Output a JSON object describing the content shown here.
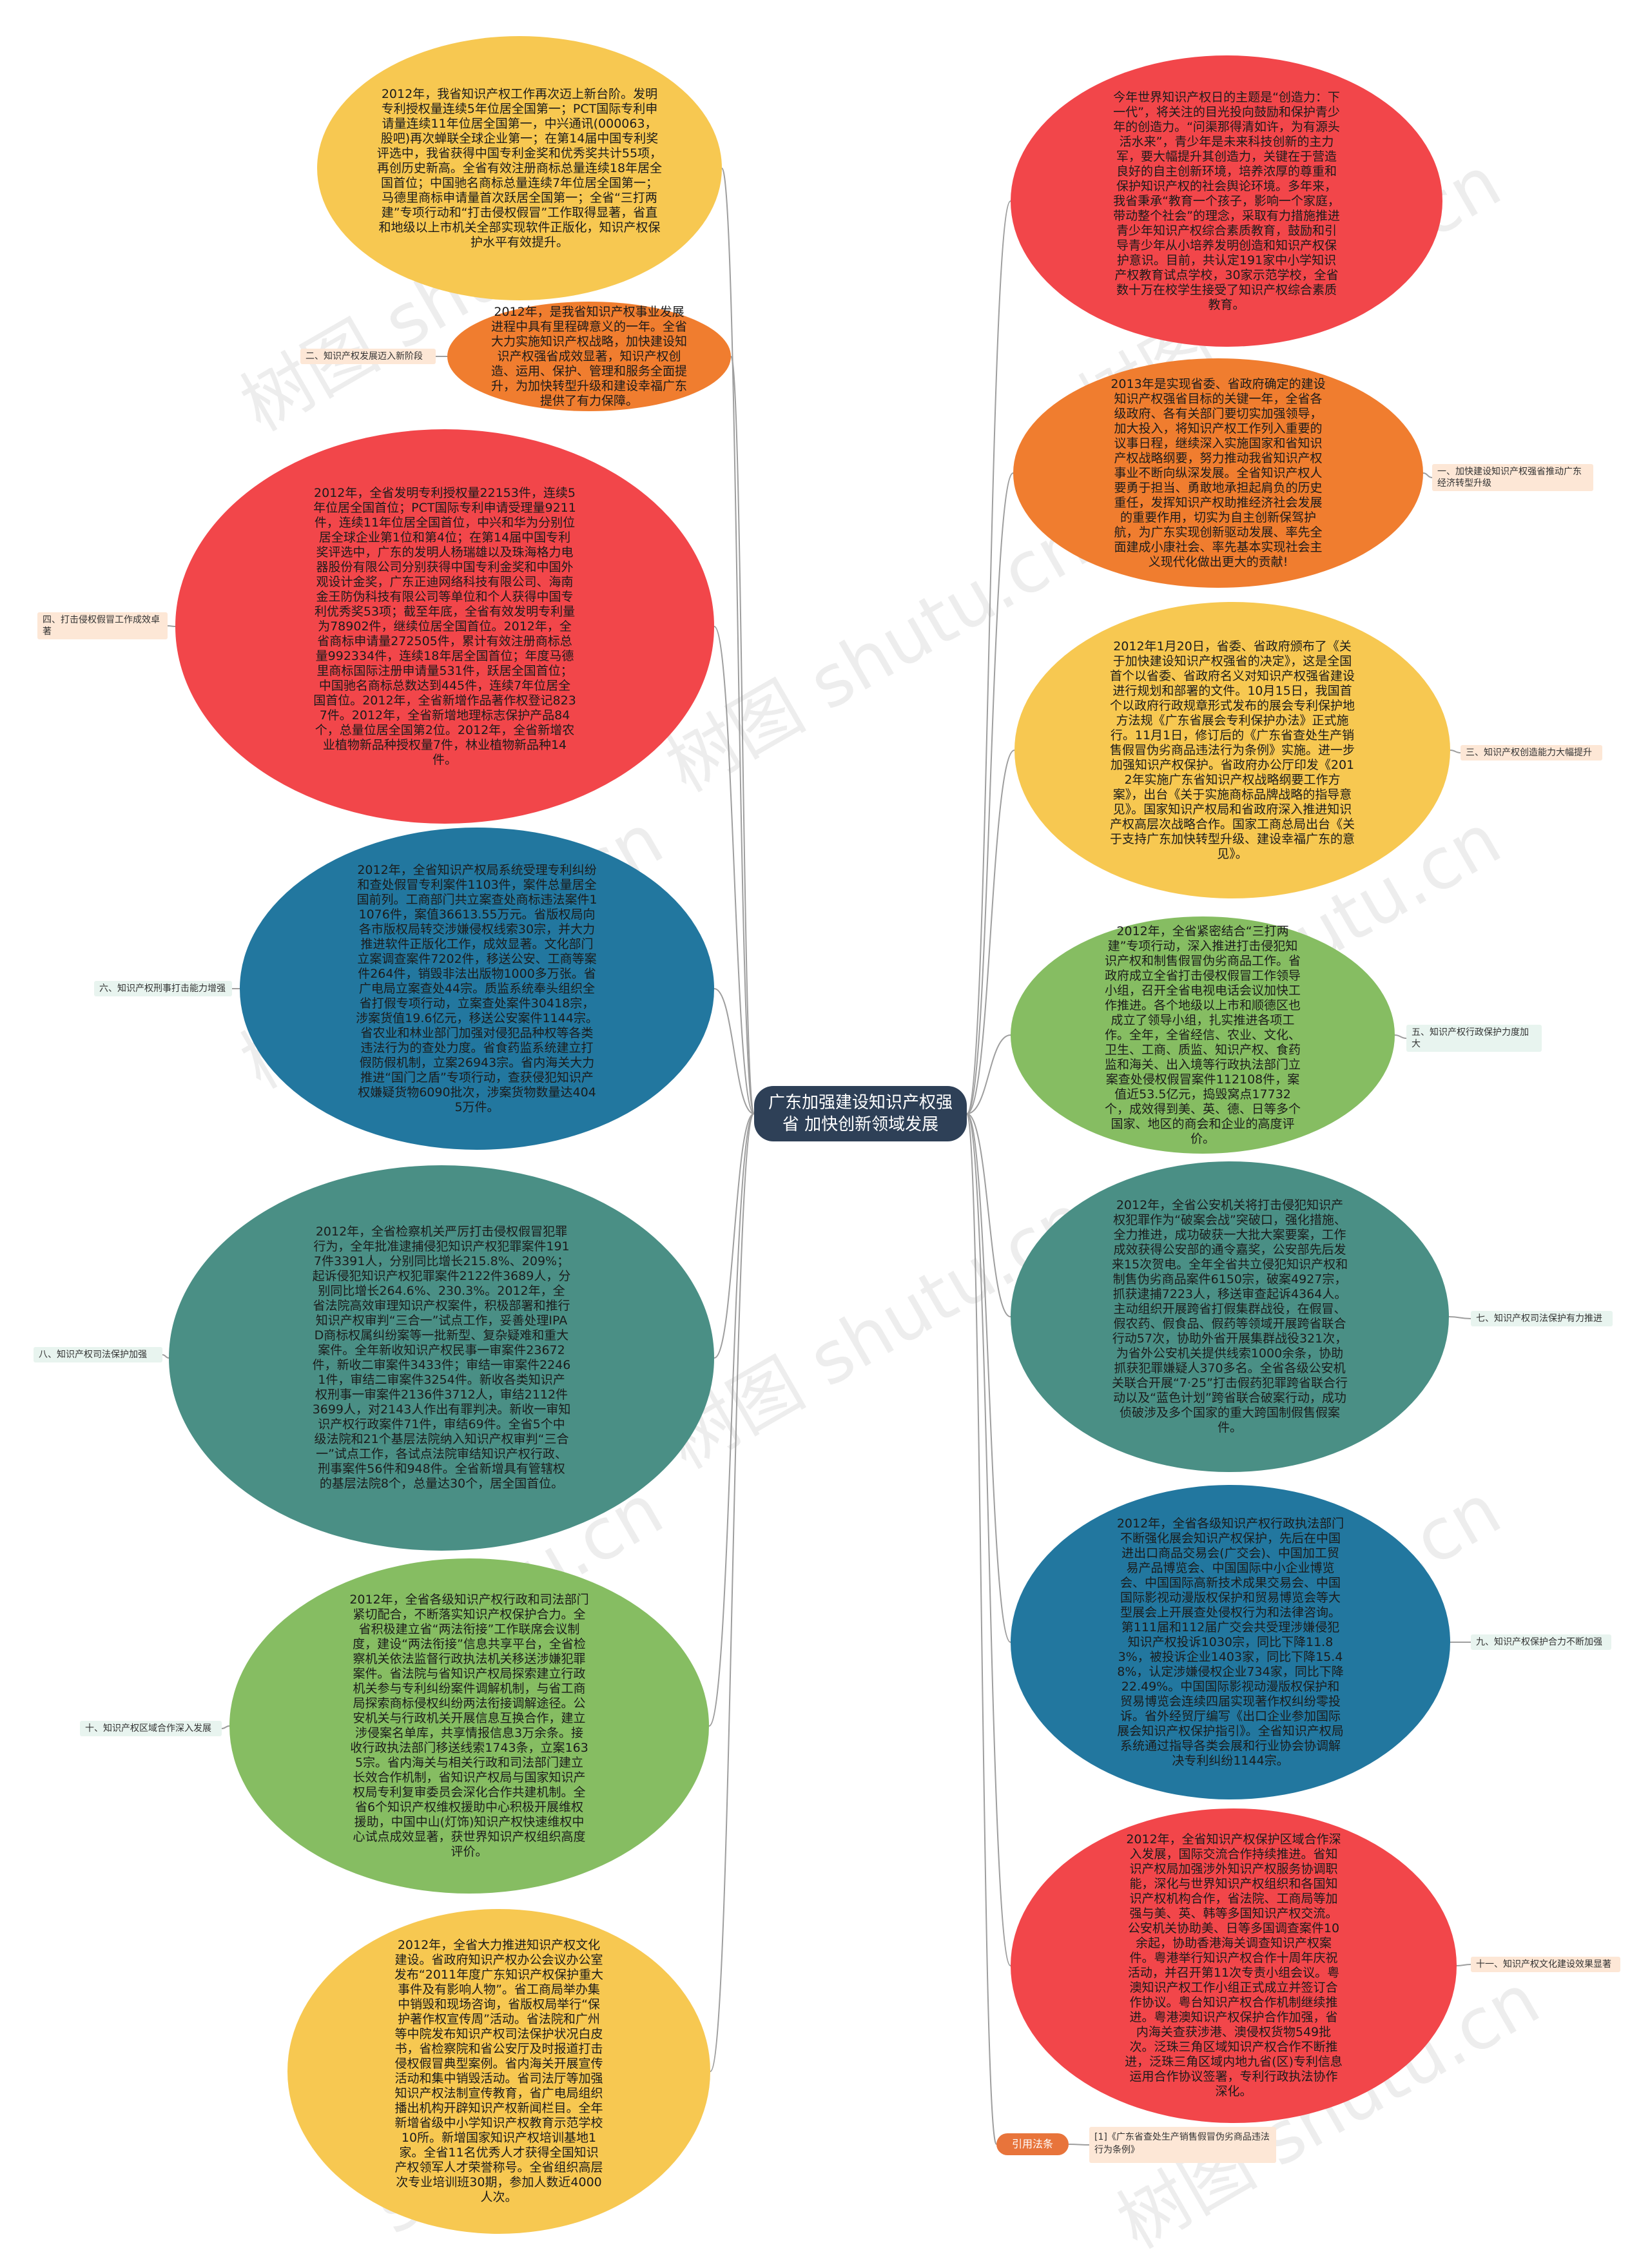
{
  "center": {
    "title": "广东加强建设知识产权强省 加快创新领域发展"
  },
  "colors": {
    "yellow": "#f7c851",
    "orange": "#f07d2f",
    "red": "#f2464a",
    "blue": "#22779f",
    "teal": "#4a8f85",
    "green": "#86bd62",
    "label_bg": "#e8f4ef",
    "label_bg_alt": "#fde7d6",
    "line": "#9e9e9e"
  },
  "nodes": [
    {
      "label": "",
      "text": "2012年，我省知识产权工作再次迈上新台阶。发明专利授权量连续5年位居全国第一；PCT国际专利申请量连续11年位居全国第一，中兴通讯(000063，股吧)再次蝉联全球企业第一；在第14届中国专利奖评选中，我省获得中国专利金奖和优秀奖共计55项，再创历史新高。全省有效注册商标总量连续18年居全国首位；中国驰名商标总量连续7年位居全国第一；马德里商标申请量首次跃居全国第一；全省“三打两建”专项行动和“打击侵权假冒”工作取得显著，省直和地级以上市机关全部实现软件正版化，知识产权保护水平有效提升。"
    },
    {
      "label": "二、知识产权发展迈入新阶段",
      "text": "2012年，是我省知识产权事业发展进程中具有里程碑意义的一年。全省大力实施知识产权战略，加快建设知识产权强省成效显著，知识产权创造、运用、保护、管理和服务全面提升，为加快转型升级和建设幸福广东提供了有力保障。"
    },
    {
      "label": "四、打击侵权假冒工作成效卓著",
      "text": "2012年，全省发明专利授权量22153件，连续5年位居全国首位；PCT国际专利申请受理量9211件，连续11年位居全国首位，中兴和华为分别位居全球企业第1位和第4位；在第14届中国专利奖评选中，广东的发明人杨瑞雄以及珠海格力电器股份有限公司分别获得中国专利金奖和中国外观设计金奖，广东正迪网络科技有限公司、海南金王防伪科技有限公司等单位和个人获得中国专利优秀奖53项；截至年底，全省有效发明专利量为78902件，继续位居全国首位。2012年，全省商标申请量272505件，累计有效注册商标总量992334件，连续18年居全国首位；年度马德里商标国际注册申请量531件，跃居全国首位；中国驰名商标总数达到445件，连续7年位居全国首位。2012年，全省新增作品著作权登记8237件。2012年，全省新增地理标志保护产品84个，总量位居全国第2位。2012年，全省新增农业植物新品种授权量7件，林业植物新品种14件。"
    },
    {
      "label": "六、知识产权刑事打击能力增强",
      "text": "2012年，全省知识产权局系统受理专利纠纷和查处假冒专利案件1103件，案件总量居全国前列。工商部门共立案查处商标违法案件11076件，案值36613.55万元。省版权局向各市版权局转交涉嫌侵权线索30宗，并大力推进软件正版化工作，成效显著。文化部门立案调查案件7202件，移送公安、工商等案件264件，销毁非法出版物1000多万张。省广电局立案查处44宗。质监系统奉头组织全省打假专项行动，立案查处案件30418宗，涉案货值19.6亿元，移送公安案件1144宗。省农业和林业部门加强对侵犯品种权等各类违法行为的查处力度。省食药监系统建立打假防假机制，立案26943宗。省内海关大力推进“国门之盾”专项行动，查获侵犯知识产权嫌疑货物6090批次，涉案货物数量达4045万件。"
    },
    {
      "label": "八、知识产权司法保护加强",
      "text": "2012年，全省检察机关严厉打击侵权假冒犯罪行为，全年批准逮捕侵犯知识产权犯罪案件1917件3391人，分别同比增长215.8%、209%；起诉侵犯知识产权犯罪案件2122件3689人，分别同比增长264.6%、230.3%。2012年，全省法院高效审理知识产权案件，积极部署和推行知识产权审判“三合一”试点工作，妥善处理IPAD商标权属纠纷案等一批新型、复杂疑难和重大案件。全年新收知识产权民事一审案件23672件，新收二审案件3433件；审结一审案件22461件，审结二审案件3254件。新收各类知识产权刑事一审案件2136件3712人，审结2112件3699人，对2143人作出有罪判决。新收一审知识产权行政案件71件，审结69件。全省5个中级法院和21个基层法院纳入知识产权审判“三合一”试点工作，各试点法院审结知识产权行政、刑事案件56件和948件。全省新增具有管辖权的基层法院8个，总量达30个，居全国首位。"
    },
    {
      "label": "十、知识产权区域合作深入发展",
      "text": "2012年，全省各级知识产权行政和司法部门紧切配合，不断落实知识产权保护合力。全省积极建立省“两法衔接”工作联席会议制度，建设“两法衔接”信息共享平台，全省检察机关依法监督行政执法机关移送涉嫌犯罪案件。省法院与省知识产权局探索建立行政机关参与专利纠纷案件调解机制，与省工商局探索商标侵权纠纷两法衔接调解途径。公安机关与行政机关开展信息互换合作，建立涉侵案名单库，共享情报信息3万余条。接收行政执法部门移送线索1743条，立案1635宗。省内海关与相关行政和司法部门建立长效合作机制，省知识产权局与国家知识产权局专利复审委员会深化合作共建机制。全省6个知识产权维权援助中心积极开展维权援助，中国中山(灯饰)知识产权快速维权中心试点成效显著，获世界知识产权组织高度评价。"
    },
    {
      "label": "",
      "text": "2012年，全省大力推进知识产权文化建设。省政府知识产权办公会议办公室发布“2011年度广东知识产权保护重大事件及有影响人物”。省工商局举办集中销毁和现场咨询，省版权局举行“保护著作权宣传周”活动。省法院和广州等中院发布知识产权司法保护状况白皮书，省检察院和省公安厅及时报道打击侵权假冒典型案例。省内海关开展宣传活动和集中销毁活动。省司法厅等加强知识产权法制宣传教育，省广电局组织播出机构开辟知识产权新闻栏目。全年新增省级中小学知识产权教育示范学校10所。新增国家知识产权培训基地1家。全省11名优秀人才获得全国知识产权领军人才荣誉称号。全省组织高层次专业培训班30期，参加人数近4000人次。"
    },
    {
      "label": "",
      "text": "今年世界知识产权日的主题是“创造力：下一代”，将关注的目光投向鼓励和保护青少年的创造力。“问渠那得清如许，为有源头活水来”，青少年是未来科技创新的主力军，要大幅提升其创造力，关键在于营造良好的自主创新环境，培养浓厚的尊重和保护知识产权的社会舆论环境。多年来，我省秉承“教育一个孩子，影响一个家庭，带动整个社会”的理念，采取有力措施推进青少年知识产权综合素质教育，鼓励和引导青少年从小培养发明创造和知识产权保护意识。目前，共认定191家中小学知识产权教育试点学校，30家示范学校，全省数十万在校学生接受了知识产权综合素质教育。"
    },
    {
      "label": "一、加快建设知识产权强省推动广东经济转型升级",
      "text": "2013年是实现省委、省政府确定的建设知识产权强省目标的关键一年，全省各级政府、各有关部门要切实加强领导，加大投入，将知识产权工作列入重要的议事日程，继续深入实施国家和省知识产权战略纲要，努力推动我省知识产权事业不断向纵深发展。全省知识产权人要勇于担当、勇敢地承担起肩负的历史重任，发挥知识产权助推经济社会发展的重要作用，切实为自主创新保驾护航，为广东实现创新驱动发展、率先全面建成小康社会、率先基本实现社会主义现代化做出更大的贡献!"
    },
    {
      "label": "三、知识产权创造能力大幅提升",
      "text": "2012年1月20日，省委、省政府颁布了《关于加快建设知识产权强省的决定》，这是全国首个以省委、省政府名义对知识产权强省建设进行规划和部署的文件。10月15日，我国首个以政府行政规章形式发布的展会专利保护地方法规《广东省展会专利保护办法》正式施行。11月1日，修订后的《广东省查处生产销售假冒伪劣商品违法行为条例》实施。进一步加强知识产权保护。省政府办公厅印发《2012年实施广东省知识产权战略纲要工作方案》，出台《关于实施商标品牌战略的指导意见》。国家知识产权局和省政府深入推进知识产权高层次战略合作。国家工商总局出台《关于支持广东加快转型升级、建设幸福广东的意见》。"
    },
    {
      "label": "五、知识产权行政保护力度加大",
      "text": "2012年，全省紧密结合“三打两建”专项行动，深入推进打击侵犯知识产权和制售假冒伪劣商品工作。省政府成立全省打击侵权假冒工作领导小组，召开全省电视电话会议加快工作推进。各个地级以上市和顺德区也成立了领导小组，扎实推进各项工作。全年，全省经信、农业、文化、卫生、工商、质监、知识产权、食药监和海关、出入境等行政执法部门立案查处侵权假冒案件112108件，案值近53.5亿元，捣毁窝点17732个，成效得到美、英、德、日等多个国家、地区的商会和企业的高度评价。"
    },
    {
      "label": "七、知识产权司法保护有力推进",
      "text": "2012年，全省公安机关将打击侵犯知识产权犯罪作为“破案会战”突破口，强化措施、全力推进，成功破获一大批大案要案，工作成效获得公安部的通令嘉奖，公安部先后发来15次贺电。全年全省共立侵犯知识产权和制售伪劣商品案件6150宗，破案4927宗，抓获逮捕7223人，移送审查起诉4364人。主动组织开展跨省打假集群战役，在假冒、假农药、假食品、假药等领域开展跨省联合行动57次，协助外省开展集群战役321次，为省外公安机关提供线索1000余条，协助抓获犯罪嫌疑人370多名。全省各级公安机关联合开展“7·25”打击假药犯罪跨省联合行动以及“蓝色计划”跨省联合破案行动，成功侦破涉及多个国家的重大跨国制假售假案件。"
    },
    {
      "label": "九、知识产权保护合力不断加强",
      "text": "2012年，全省各级知识产权行政执法部门不断强化展会知识产权保护，先后在中国进出口商品交易会(广交会)、中国加工贸易产品博览会、中国国际中小企业博览会、中国国际高新技术成果交易会、中国国际影视动漫版权保护和贸易博览会等大型展会上开展查处侵权行为和法律咨询。第111届和112届广交会共受理涉嫌侵犯知识产权投诉1030宗，同比下降11.83%，被投诉企业1403家，同比下降15.48%，认定涉嫌侵权企业734家，同比下降22.49%。中国国际影视动漫版权保护和贸易博览会连续四届实现著作权纠纷零投诉。省外经贸厅编写《出口企业参加国际展会知识产权保护指引》。全省知识产权局系统通过指导各类会展和行业协会协调解决专利纠纷1144宗。"
    },
    {
      "label": "十一、知识产权文化建设效果显著",
      "text": "2012年，全省知识产权保护区域合作深入发展，国际交流合作持续推进。省知识产权局加强涉外知识产权服务协调职能，深化与世界知识产权组织和各国知识产权机构合作，省法院、工商局等加强与美、英、韩等多国知识产权交流。公安机关协助美、日等多国调查案件10余起，协助香港海关调查知识产权案件。粤港举行知识产权合作十周年庆祝活动，并召开第11次专责小组会议。粤澳知识产权工作小组正式成立并签订合作协议。粤台知识产权合作机制继续推进。粤港澳知识产权保护合作加强，省内海关查获涉港、澳侵权货物549批次。泛珠三角区域知识产权合作不断推进，泛珠三角区域内地九省(区)专利信息运用合作协议签署，专利行政执法协作深化。"
    }
  ],
  "law": {
    "tag": "引用法条",
    "note": "[1]《广东省查处生产销售假冒伪劣商品违法行为条例》"
  },
  "watermarks": [
    "树图 shutu.cn",
    "树图 shutu.cn",
    "树图 shutu.cn",
    "树图 shutu.cn",
    "树图 shutu.cn",
    "树图 shutu.cn",
    "树图 shutu.cn",
    "树图 shutu.cn",
    "shutu.cn",
    "树图 shutu.cn"
  ]
}
